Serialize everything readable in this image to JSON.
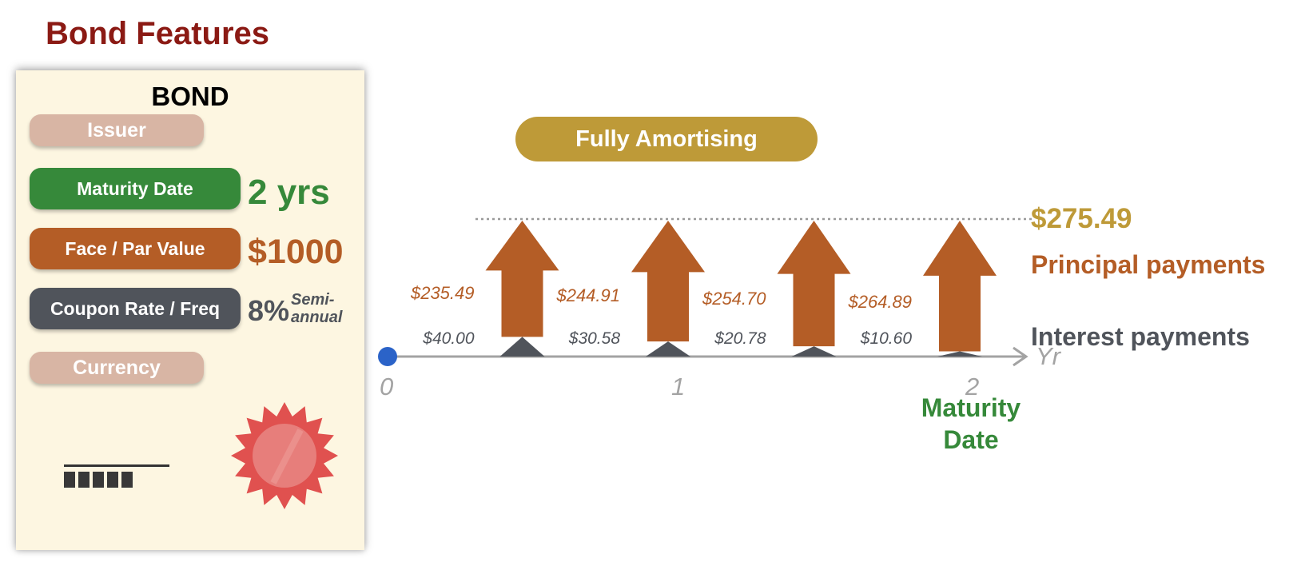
{
  "page": {
    "title": "Bond Features"
  },
  "card": {
    "heading": "BOND",
    "issuer_label": "Issuer",
    "currency_label": "Currency",
    "features": [
      {
        "label": "Maturity Date",
        "value": "2 yrs",
        "color": "#36893A",
        "value_color": "#36893A"
      },
      {
        "label": "Face / Par Value",
        "value": "$1000",
        "color": "#B45D26",
        "value_color": "#B45D26"
      },
      {
        "label": "Coupon Rate / Freq",
        "value": "8%",
        "note": "Semi-\nannual",
        "color": "#50545B",
        "value_color": "#50545B"
      }
    ]
  },
  "diagram": {
    "banner": "Fully Amortising",
    "total_payment": "$275.49",
    "principal_legend": "Principal payments",
    "interest_legend": "Interest payments",
    "axis_unit": "Yr",
    "ticks": [
      "0",
      "1",
      "2"
    ],
    "maturity_label": "Maturity\nDate",
    "payments": [
      {
        "period": 0.5,
        "principal": 235.49,
        "interest": 40.0,
        "principal_label": "$235.49",
        "interest_label": "$40.00"
      },
      {
        "period": 1.0,
        "principal": 244.91,
        "interest": 30.58,
        "principal_label": "$244.91",
        "interest_label": "$30.58"
      },
      {
        "period": 1.5,
        "principal": 254.7,
        "interest": 20.78,
        "principal_label": "$254.70",
        "interest_label": "$20.78"
      },
      {
        "period": 2.0,
        "principal": 264.89,
        "interest": 10.6,
        "principal_label": "$264.89",
        "interest_label": "$10.60"
      }
    ]
  },
  "colors": {
    "title": "#8B1A14",
    "principal": "#B45D26",
    "interest": "#50545B",
    "banner": "#BE9A38",
    "total": "#BE9A38",
    "maturity": "#36893A",
    "axis": "#A3A3A3",
    "origin_dot": "#2B63C8",
    "seal": "#E0514F"
  }
}
